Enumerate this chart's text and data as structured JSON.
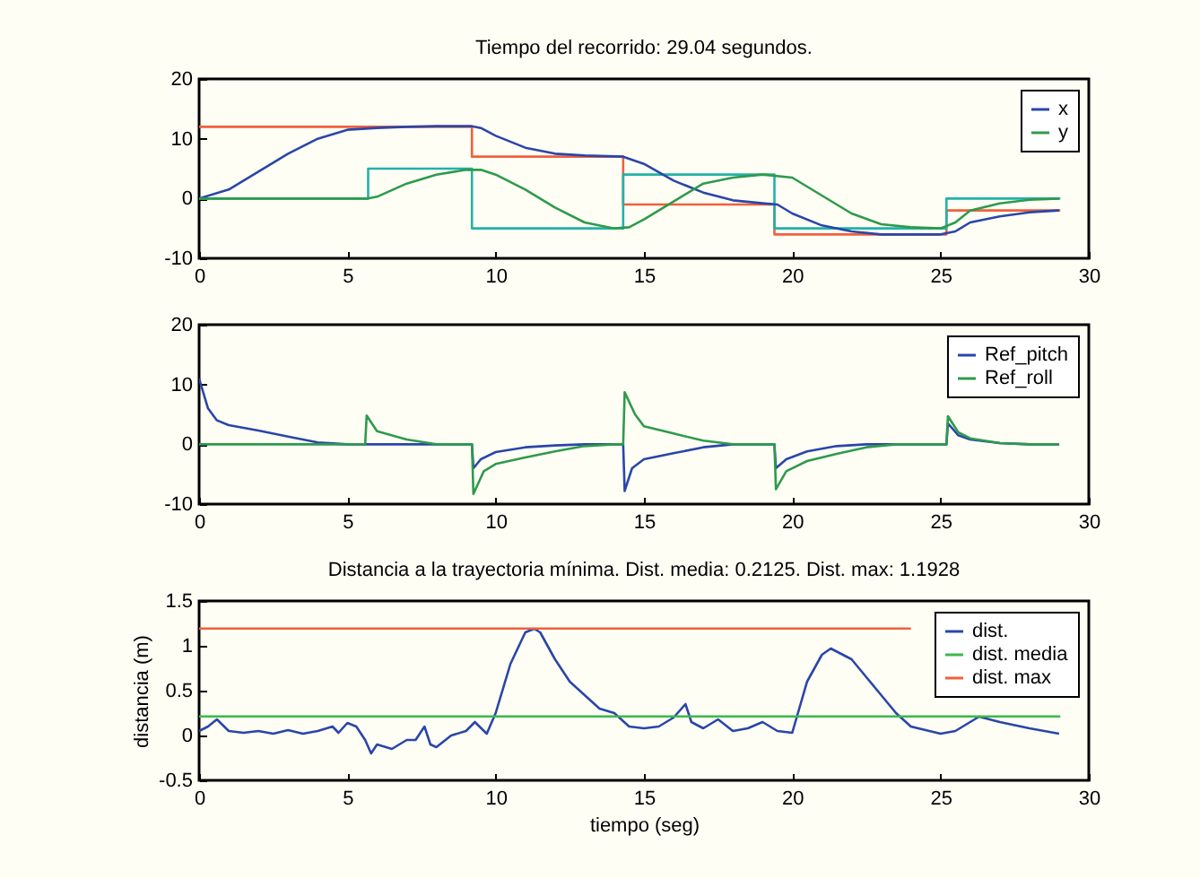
{
  "chart_data": [
    {
      "type": "line",
      "title": "Tiempo del recorrido: 29.04 segundos.",
      "xlim": [
        0,
        30
      ],
      "xticks": [
        0,
        5,
        10,
        15,
        20,
        25,
        30
      ],
      "ylim": [
        -10,
        20
      ],
      "yticks": [
        -10,
        0,
        10,
        20
      ],
      "grid": false,
      "legend": "top right",
      "series": [
        {
          "name": "x",
          "color": "#2a46a8",
          "x": [
            0,
            1,
            2,
            3,
            4,
            5,
            6,
            7,
            8,
            9.2,
            9.5,
            10,
            11,
            12,
            13,
            14.3,
            15,
            16,
            17,
            18,
            19,
            19.5,
            20,
            21,
            22,
            23,
            24,
            25,
            25.5,
            26,
            27,
            28,
            29
          ],
          "values": [
            0,
            1.5,
            4.5,
            7.5,
            10,
            11.5,
            11.8,
            12,
            12.1,
            12.1,
            11.8,
            10.5,
            8.5,
            7.5,
            7.2,
            7,
            5.8,
            3,
            1,
            -0.3,
            -0.8,
            -1,
            -2.5,
            -4.5,
            -5.5,
            -6,
            -6,
            -6,
            -5.5,
            -4,
            -3,
            -2.3,
            -2
          ]
        },
        {
          "name": "y",
          "color": "#2e9a4c",
          "x": [
            0,
            5.7,
            6,
            7,
            8,
            9,
            9.5,
            10,
            11,
            12,
            13,
            14,
            14.5,
            15,
            16,
            17,
            18,
            19,
            20,
            21,
            22,
            23,
            24,
            25,
            25.5,
            26,
            27,
            28,
            29
          ],
          "values": [
            0,
            0,
            0.3,
            2.5,
            4,
            4.8,
            4.8,
            4,
            1.5,
            -1.5,
            -4,
            -5,
            -4.8,
            -3.5,
            -0.5,
            2.5,
            3.5,
            4,
            3.5,
            0.5,
            -2.5,
            -4.3,
            -4.8,
            -5,
            -4,
            -2,
            -0.8,
            -0.2,
            0
          ]
        },
        {
          "color": "#f0603c",
          "x": [
            0,
            9.2,
            9.2,
            14.3,
            14.3,
            19.4,
            19.4,
            25.2,
            25.2,
            29.04
          ],
          "values": [
            12,
            12,
            7,
            7,
            -1,
            -1,
            -6,
            -6,
            -2,
            -2
          ]
        },
        {
          "color": "#22b2a8",
          "x": [
            0,
            5.7,
            5.7,
            9.2,
            9.2,
            14.3,
            14.3,
            19.4,
            19.4,
            25.2,
            25.2,
            29.04
          ],
          "values": [
            0,
            0,
            5,
            5,
            -5,
            -5,
            4,
            4,
            -5,
            -5,
            0,
            0
          ]
        }
      ]
    },
    {
      "type": "line",
      "xlim": [
        0,
        30
      ],
      "xticks": [
        0,
        5,
        10,
        15,
        20,
        25,
        30
      ],
      "ylim": [
        -10,
        20
      ],
      "yticks": [
        -10,
        0,
        10,
        20
      ],
      "grid": false,
      "legend": "top right",
      "series": [
        {
          "name": "Ref_pitch",
          "color": "#2a46a8",
          "x": [
            0,
            0.3,
            0.6,
            1,
            2,
            3,
            4,
            5,
            9.2,
            9.25,
            9.5,
            10,
            11,
            12,
            13,
            14.3,
            14.35,
            14.6,
            15,
            16,
            17,
            18,
            19.4,
            19.45,
            19.8,
            20.5,
            21.5,
            22.5,
            25.2,
            25.25,
            25.6,
            26,
            27,
            28,
            29
          ],
          "values": [
            11,
            6,
            4,
            3.2,
            2.3,
            1.3,
            0.3,
            0,
            0,
            -4,
            -2.5,
            -1.3,
            -0.5,
            -0.2,
            0,
            0,
            -7.8,
            -4,
            -2.5,
            -1.5,
            -0.5,
            0,
            0,
            -4,
            -2.5,
            -1.2,
            -0.3,
            0,
            0,
            3.5,
            1.5,
            0.8,
            0.2,
            0,
            0
          ]
        },
        {
          "name": "Ref_roll",
          "color": "#2e9a4c",
          "x": [
            0,
            5.6,
            5.65,
            6,
            7,
            8,
            9.2,
            9.25,
            9.6,
            10,
            11,
            12,
            13,
            14,
            14.3,
            14.35,
            14.7,
            15,
            16,
            17,
            18,
            19.4,
            19.45,
            19.8,
            20.5,
            21.5,
            22.5,
            23.5,
            25.2,
            25.25,
            25.6,
            26,
            27,
            28,
            29
          ],
          "values": [
            0,
            0,
            4.8,
            2.2,
            0.8,
            0,
            0,
            -8.3,
            -4.5,
            -3.3,
            -2.2,
            -1.2,
            -0.3,
            0,
            0,
            8.7,
            5,
            3,
            1.8,
            0.6,
            0,
            0,
            -7.5,
            -4.5,
            -2.8,
            -1.6,
            -0.5,
            0,
            0,
            4.7,
            2,
            1,
            0.2,
            0,
            0
          ]
        }
      ]
    },
    {
      "type": "line",
      "title": "Distancia a la trayectoria mínima. Dist. media: 0.2125. Dist. max: 1.1928",
      "xlabel": "tiempo (seg)",
      "ylabel": "distancia (m)",
      "xlim": [
        0,
        30
      ],
      "xticks": [
        0,
        5,
        10,
        15,
        20,
        25,
        30
      ],
      "ylim": [
        -0.5,
        1.5
      ],
      "yticks": [
        -0.5,
        0,
        0.5,
        1,
        1.5
      ],
      "grid": false,
      "legend": "top right",
      "series": [
        {
          "name": "dist.",
          "color": "#2a46a8",
          "x": [
            0,
            0.3,
            0.6,
            1,
            1.5,
            2,
            2.5,
            3,
            3.5,
            4,
            4.5,
            4.7,
            5,
            5.3,
            5.6,
            5.8,
            6,
            6.5,
            7,
            7.3,
            7.6,
            7.8,
            8,
            8.5,
            9,
            9.3,
            9.7,
            10,
            10.5,
            11,
            11.3,
            11.5,
            12,
            12.5,
            13,
            13.5,
            14,
            14.5,
            15,
            15.5,
            16,
            16.4,
            16.6,
            17,
            17.5,
            18,
            18.5,
            19,
            19.5,
            20,
            20.5,
            21,
            21.3,
            22,
            22.5,
            23,
            23.5,
            24,
            24.5,
            25,
            25.5,
            26,
            26.3,
            27,
            28,
            29
          ],
          "values": [
            0.05,
            0.1,
            0.18,
            0.05,
            0.03,
            0.05,
            0.02,
            0.06,
            0.02,
            0.05,
            0.1,
            0.03,
            0.14,
            0.1,
            -0.05,
            -0.2,
            -0.1,
            -0.15,
            -0.05,
            -0.05,
            0.1,
            -0.1,
            -0.13,
            0,
            0.05,
            0.15,
            0.02,
            0.25,
            0.8,
            1.15,
            1.19,
            1.15,
            0.85,
            0.6,
            0.45,
            0.3,
            0.25,
            0.1,
            0.08,
            0.1,
            0.2,
            0.35,
            0.15,
            0.08,
            0.18,
            0.05,
            0.08,
            0.15,
            0.05,
            0.03,
            0.6,
            0.9,
            0.97,
            0.85,
            0.65,
            0.45,
            0.25,
            0.1,
            0.06,
            0.02,
            0.05,
            0.15,
            0.21,
            0.15,
            0.08,
            0.02
          ]
        },
        {
          "name": "dist. media",
          "color": "#3cb84a",
          "x": [
            0,
            29.04
          ],
          "values": [
            0.2125,
            0.2125
          ]
        },
        {
          "name": "dist. max",
          "color": "#f0603c",
          "x": [
            0,
            24
          ],
          "values": [
            1.1928,
            1.1928
          ]
        }
      ]
    }
  ]
}
